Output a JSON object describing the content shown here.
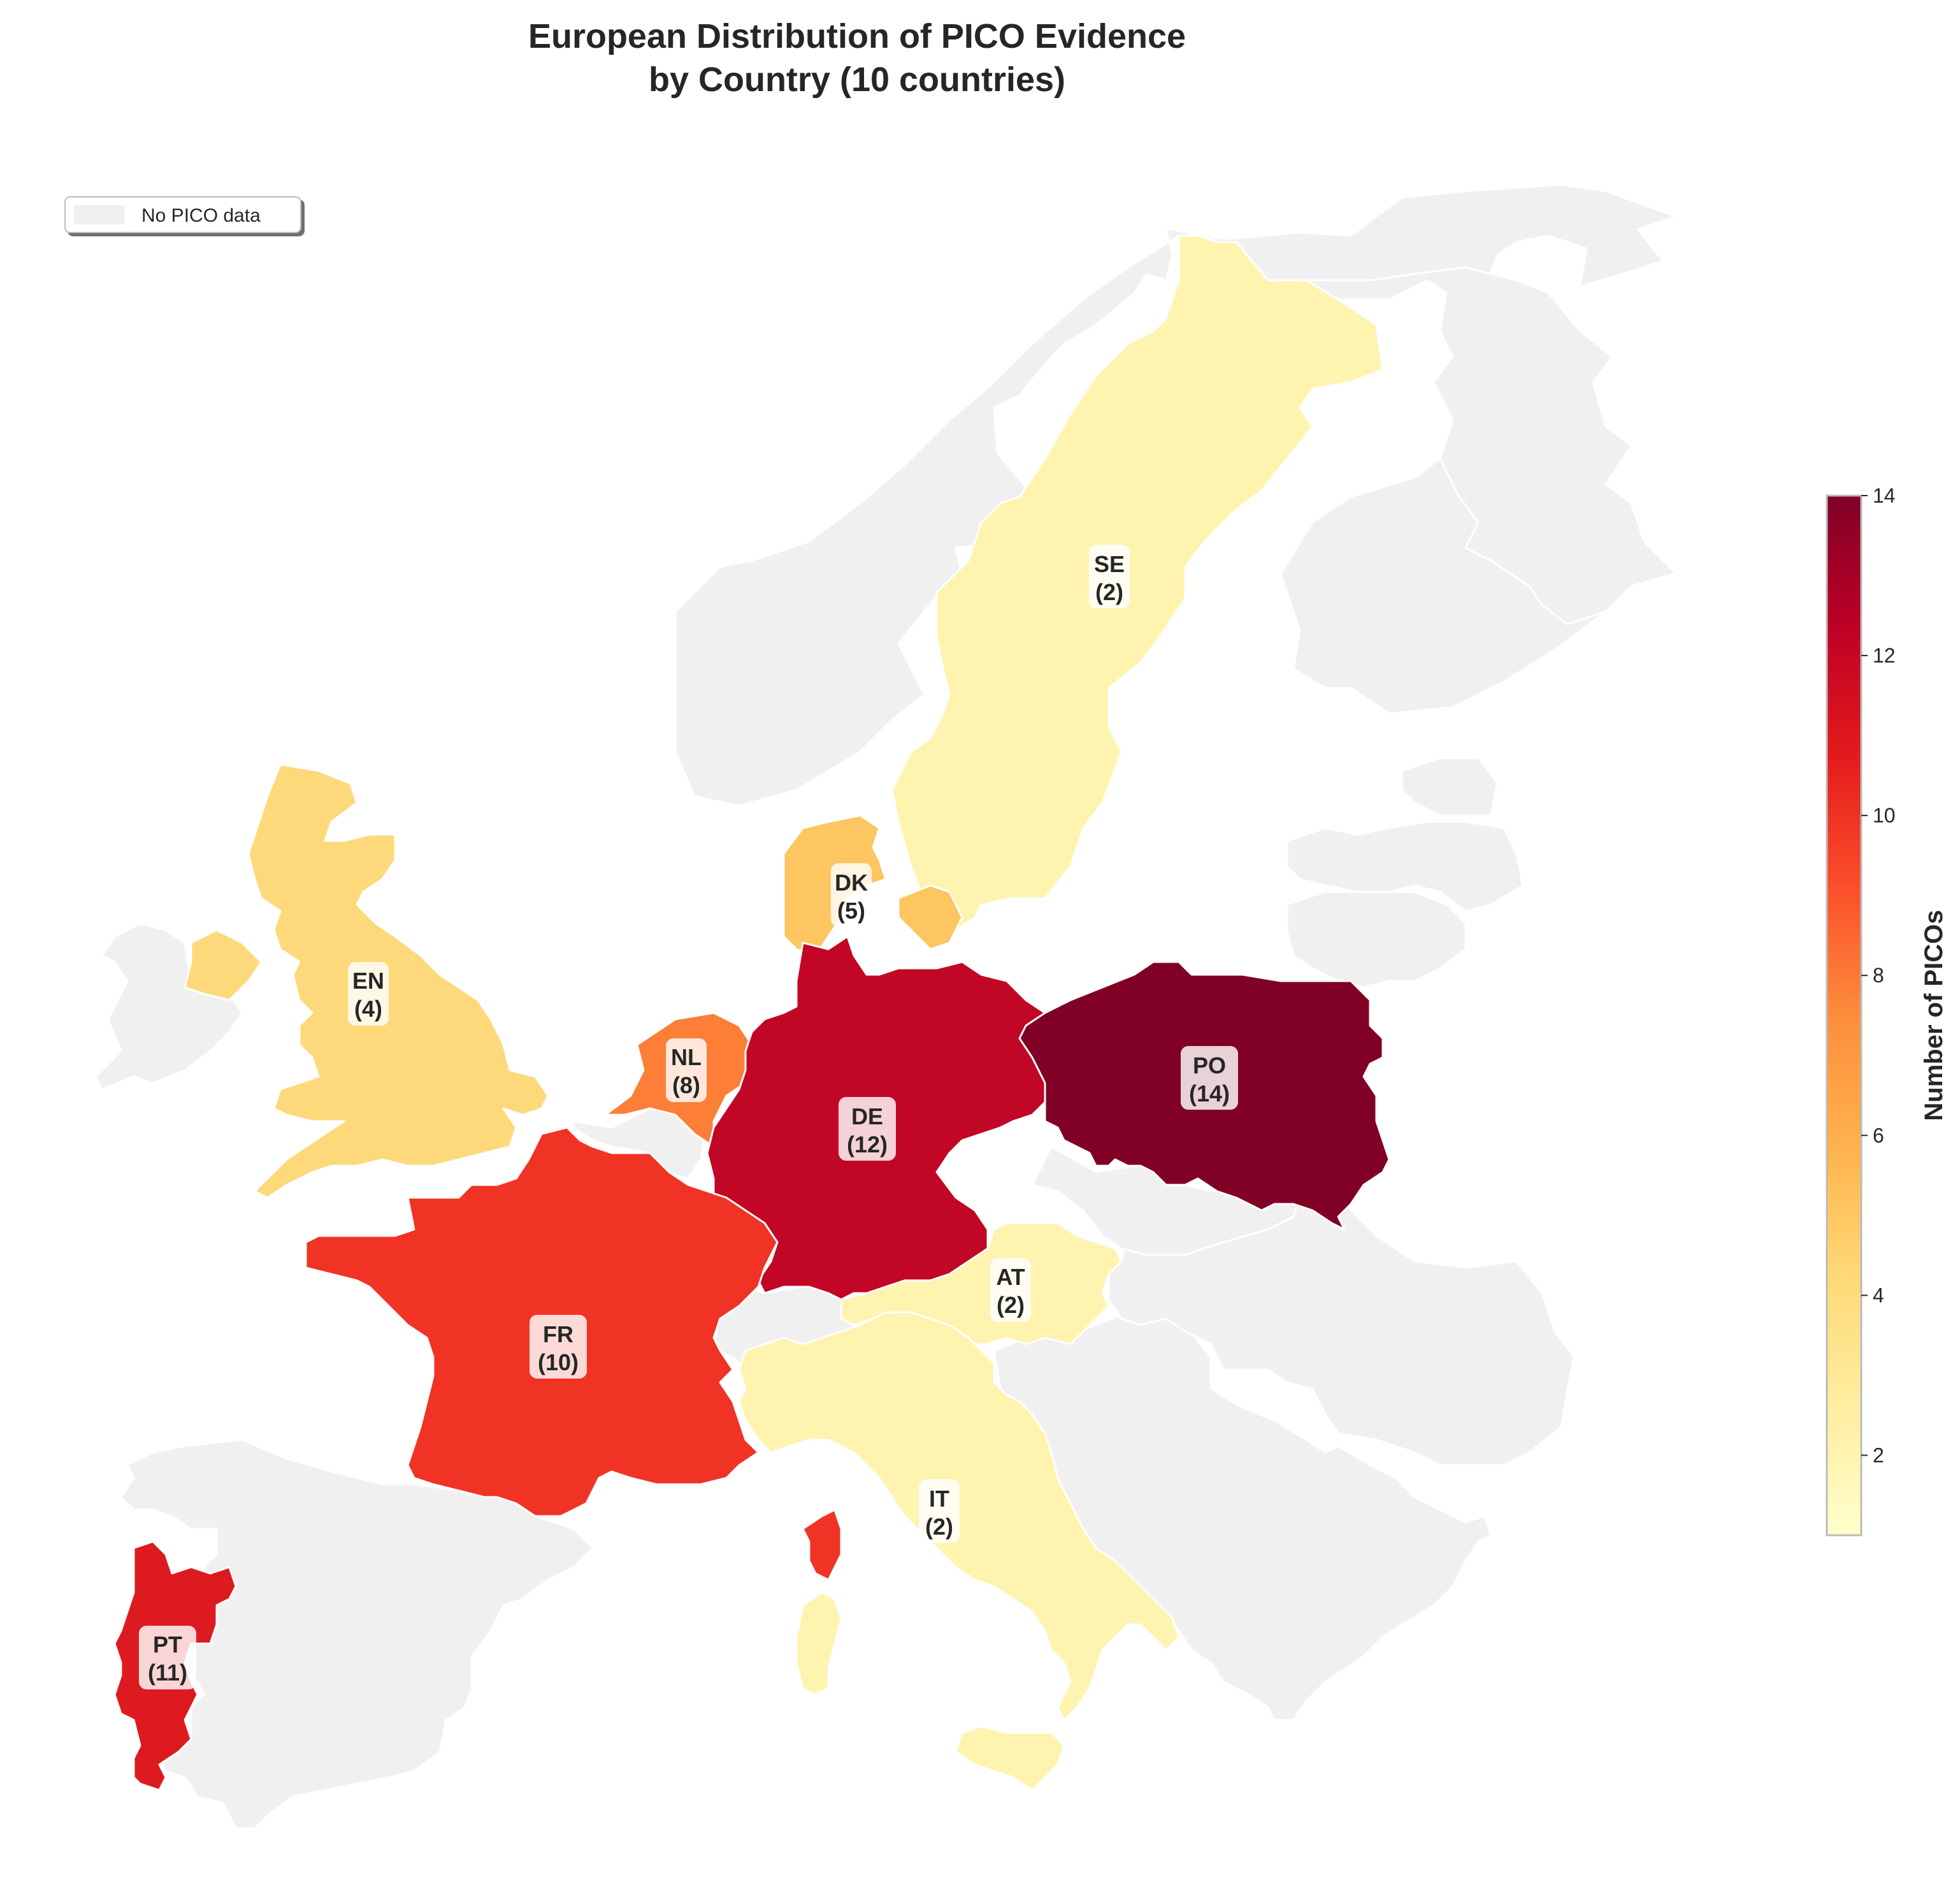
{
  "title": {
    "line1": "European Distribution of PICO Evidence",
    "line2": "by Country (10 countries)"
  },
  "legend": {
    "nodata_label": "No PICO data",
    "nodata_color": "#f0f0f0"
  },
  "colorbar": {
    "label": "Number of PICOs",
    "min": 1,
    "max": 14,
    "ticks": [
      2,
      4,
      6,
      8,
      10,
      12,
      14
    ],
    "colormap": [
      "#ffffcc",
      "#ffeda0",
      "#fed976",
      "#feb24c",
      "#fd8d3c",
      "#fc4e2a",
      "#e31a1c",
      "#bd0026",
      "#800026"
    ]
  },
  "countries": [
    {
      "code": "SE",
      "value": "2",
      "color": "#fff3b0"
    },
    {
      "code": "DK",
      "value": "5",
      "color": "#fec661"
    },
    {
      "code": "EN",
      "value": "4",
      "color": "#fed97b"
    },
    {
      "code": "NL",
      "value": "8",
      "color": "#fd7e37"
    },
    {
      "code": "DE",
      "value": "12",
      "color": "#c20625"
    },
    {
      "code": "PO",
      "value": "14",
      "color": "#800026"
    },
    {
      "code": "AT",
      "value": "2",
      "color": "#fff3b0"
    },
    {
      "code": "FR",
      "value": "10",
      "color": "#f03324"
    },
    {
      "code": "IT",
      "value": "2",
      "color": "#fff3b0"
    },
    {
      "code": "PT",
      "value": "11",
      "color": "#dd1a1f"
    }
  ]
}
